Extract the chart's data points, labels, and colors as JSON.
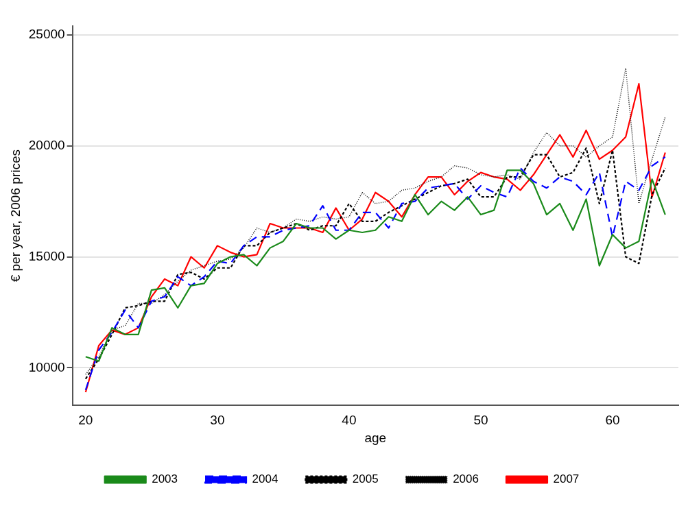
{
  "chart_data": {
    "type": "line",
    "xlabel": "age",
    "ylabel": "€ per year, 2006 prices",
    "x": [
      20,
      21,
      22,
      23,
      24,
      25,
      26,
      27,
      28,
      29,
      30,
      31,
      32,
      33,
      34,
      35,
      36,
      37,
      38,
      39,
      40,
      41,
      42,
      43,
      44,
      45,
      46,
      47,
      48,
      49,
      50,
      51,
      52,
      53,
      54,
      55,
      56,
      57,
      58,
      59,
      60,
      61,
      62,
      63,
      64
    ],
    "xlim": [
      19,
      65
    ],
    "xticks": [
      20,
      30,
      40,
      50,
      60
    ],
    "ylim": [
      8300,
      25400
    ],
    "yticks": [
      10000,
      15000,
      20000,
      25000
    ],
    "grid": "y",
    "legend": "bottom",
    "marker": "none",
    "series": [
      {
        "name": "2003",
        "color": "#1a8a1a",
        "line_style": "solid",
        "values": [
          10500,
          10300,
          11800,
          11500,
          11500,
          13500,
          13600,
          12700,
          13700,
          13800,
          14700,
          15000,
          15100,
          14600,
          15400,
          15700,
          16500,
          16300,
          16300,
          15800,
          16200,
          16100,
          16200,
          16800,
          16600,
          17800,
          16900,
          17500,
          17100,
          17700,
          16900,
          17100,
          18900,
          18900,
          18300,
          16900,
          17400,
          16200,
          17600,
          14600,
          16000,
          15400,
          15700,
          18500,
          16900
        ]
      },
      {
        "name": "2004",
        "color": "#0000ff",
        "line_style": "dashed",
        "values": [
          9000,
          10800,
          11600,
          12600,
          11800,
          13000,
          13200,
          14100,
          13700,
          14100,
          14800,
          14700,
          15500,
          15900,
          15900,
          16200,
          16300,
          16400,
          17300,
          16200,
          16200,
          17000,
          17000,
          16300,
          17400,
          17500,
          18100,
          18200,
          18300,
          17600,
          18200,
          17900,
          17700,
          19000,
          18400,
          18100,
          18600,
          18400,
          17800,
          18800,
          15900,
          18400,
          18000,
          19100,
          19500
        ]
      },
      {
        "name": "2005",
        "color": "#000000",
        "line_style": "dashed",
        "values": [
          9500,
          10400,
          11500,
          12700,
          12800,
          13000,
          13000,
          14200,
          14300,
          14000,
          14500,
          14500,
          15500,
          15500,
          16100,
          16300,
          16500,
          16200,
          16400,
          16400,
          17400,
          16600,
          16600,
          17000,
          17300,
          17600,
          17900,
          18200,
          18300,
          18500,
          17700,
          17700,
          18600,
          18600,
          19600,
          19600,
          18600,
          18800,
          19900,
          17400,
          19800,
          15000,
          14700,
          17800,
          19000
        ]
      },
      {
        "name": "2006",
        "color": "#000000",
        "line_style": "dotted",
        "values": [
          9700,
          10500,
          11700,
          11900,
          12900,
          12900,
          13300,
          13900,
          14400,
          14600,
          14800,
          14900,
          15400,
          16300,
          16100,
          16300,
          16700,
          16600,
          16800,
          16700,
          16800,
          17900,
          17400,
          17500,
          18000,
          18100,
          18400,
          18600,
          19100,
          19000,
          18700,
          18600,
          18700,
          18500,
          19700,
          20600,
          20000,
          20000,
          19500,
          20000,
          20400,
          23500,
          17400,
          19400,
          21300
        ]
      },
      {
        "name": "2007",
        "color": "#ff0000",
        "line_style": "solid",
        "values": [
          8900,
          11000,
          11700,
          11500,
          11800,
          13200,
          14000,
          13700,
          15000,
          14500,
          15500,
          15200,
          15000,
          15100,
          16500,
          16300,
          16300,
          16300,
          16100,
          17200,
          16200,
          16700,
          17900,
          17500,
          16800,
          17800,
          18600,
          18600,
          17800,
          18400,
          18800,
          18600,
          18500,
          18000,
          18700,
          19600,
          20500,
          19500,
          20700,
          19400,
          19800,
          20400,
          22800,
          17700,
          19700
        ]
      }
    ]
  }
}
